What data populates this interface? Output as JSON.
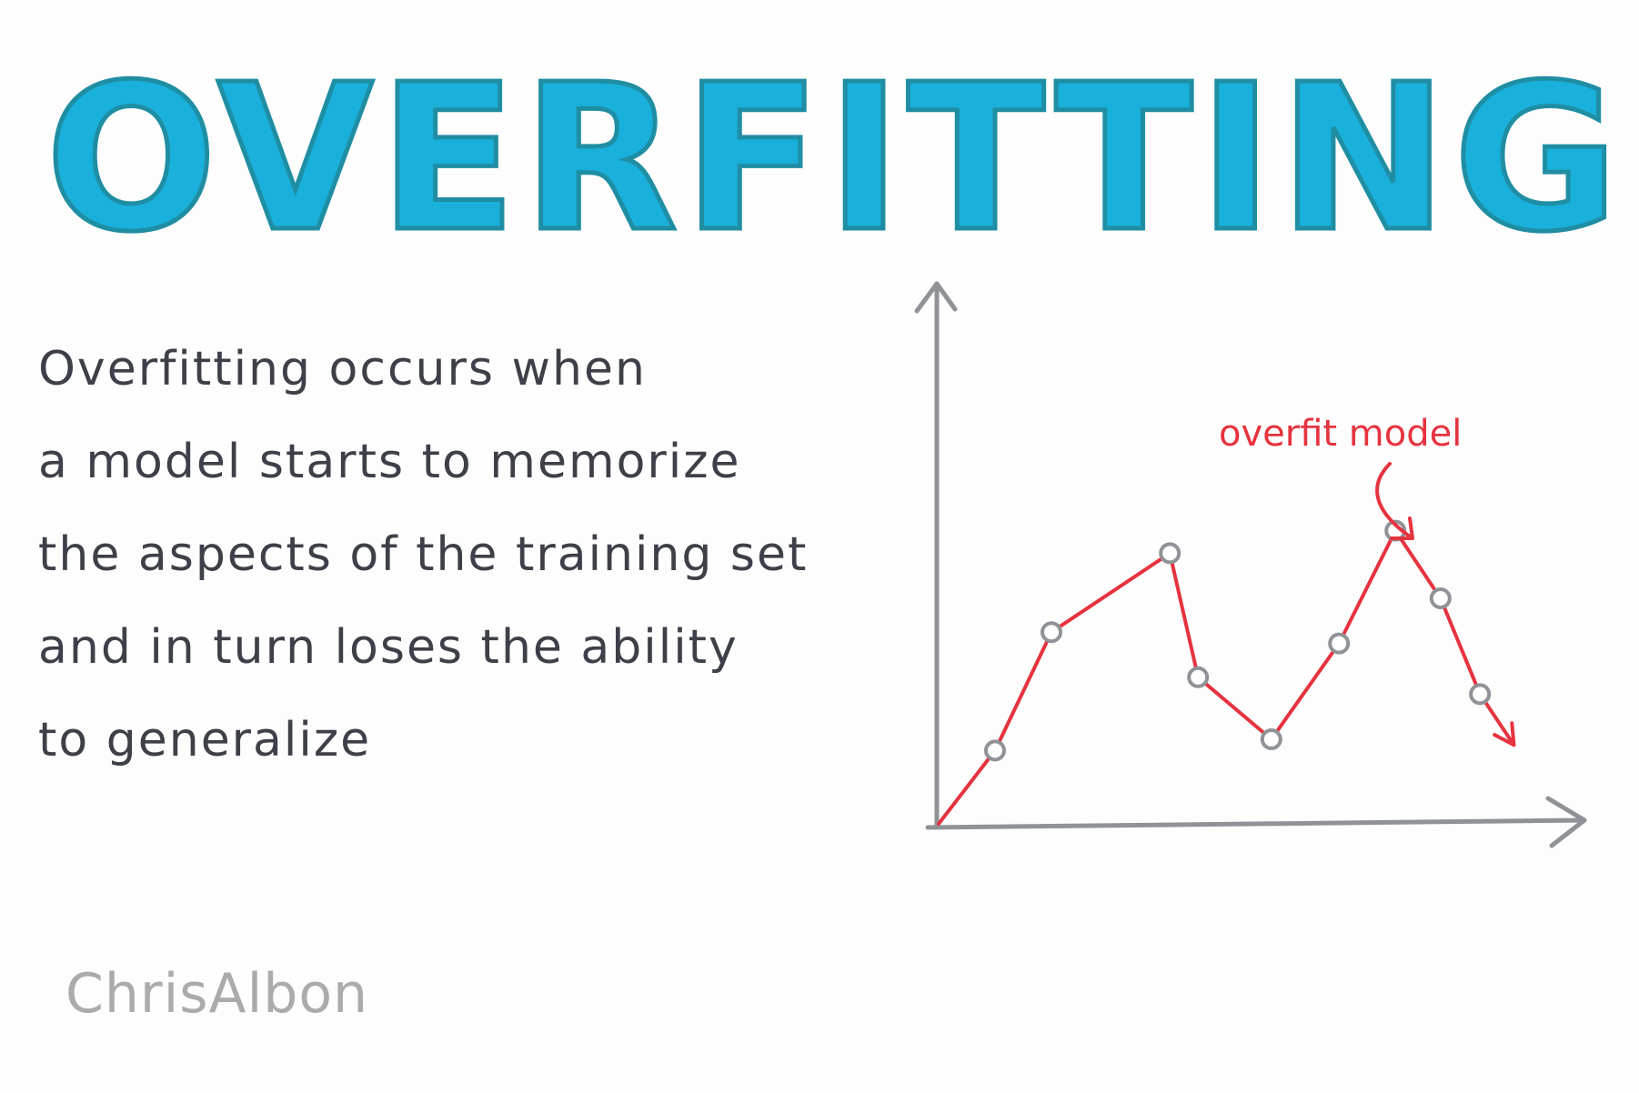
{
  "title": "OVERFITTING",
  "body": {
    "lines": [
      "Overfitting occurs when",
      "a model starts to memorize",
      "the aspects of the training set",
      "and in turn loses the ability",
      "to generalize"
    ]
  },
  "signature": "ChrisAlbon",
  "colors": {
    "title_fill": "#1ab0dc",
    "title_outline": "#1f8ea3",
    "body_text": "#3d4048",
    "axis": "#8f9296",
    "line": "#e5333f",
    "signature": "#a9abad"
  },
  "chart_data": {
    "type": "line",
    "annotation": "overfit model",
    "series": [
      {
        "points": [
          {
            "x": 0,
            "y": 0
          },
          {
            "x": 1,
            "y": 1.3
          },
          {
            "x": 2,
            "y": 3.4
          },
          {
            "x": 4.1,
            "y": 4.8
          },
          {
            "x": 4.6,
            "y": 2.6
          },
          {
            "x": 5.9,
            "y": 1.5
          },
          {
            "x": 7.1,
            "y": 3.2
          },
          {
            "x": 8.1,
            "y": 5.2
          },
          {
            "x": 8.9,
            "y": 4.0
          },
          {
            "x": 9.6,
            "y": 2.3
          },
          {
            "x": 10.2,
            "y": 1.4
          }
        ]
      }
    ]
  }
}
